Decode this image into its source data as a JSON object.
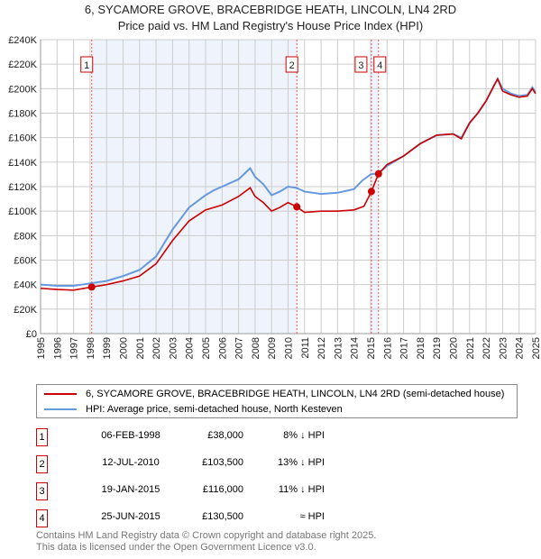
{
  "header": {
    "title": "6, SYCAMORE GROVE, BRACEBRIDGE HEATH, LINCOLN, LN4 2RD",
    "subtitle": "Price paid vs. HM Land Registry's House Price Index (HPI)"
  },
  "chart_data": {
    "type": "line",
    "title": "6, SYCAMORE GROVE, BRACEBRIDGE HEATH, LINCOLN, LN4 2RD",
    "subtitle": "Price paid vs. HM Land Registry's House Price Index (HPI)",
    "xlim": [
      1995,
      2025
    ],
    "ylim": [
      0,
      240000
    ],
    "x_ticks": [
      "1995",
      "1996",
      "1997",
      "1998",
      "1999",
      "2000",
      "2001",
      "2002",
      "2003",
      "2004",
      "2005",
      "2006",
      "2007",
      "2008",
      "2009",
      "2010",
      "2011",
      "2012",
      "2013",
      "2014",
      "2015",
      "2016",
      "2017",
      "2018",
      "2019",
      "2020",
      "2021",
      "2022",
      "2023",
      "2024",
      "2025"
    ],
    "y_ticks": [
      "£0",
      "£20K",
      "£40K",
      "£60K",
      "£80K",
      "£100K",
      "£120K",
      "£140K",
      "£160K",
      "£180K",
      "£200K",
      "£220K",
      "£240K"
    ],
    "grid": true,
    "series": [
      {
        "name": "6, SYCAMORE GROVE, BRACEBRIDGE HEATH, LINCOLN, LN4 2RD (semi-detached house)",
        "color": "#cc0000",
        "x": [
          1995,
          1996,
          1997,
          1998.1,
          1999,
          2000,
          2001,
          2002,
          2003,
          2004,
          2005,
          2006,
          2007,
          2007.7,
          2008,
          2008.5,
          2009,
          2009.5,
          2010,
          2010.53,
          2011,
          2012,
          2013,
          2014,
          2014.6,
          2015.05,
          2015.48,
          2016,
          2017,
          2018,
          2019,
          2020,
          2020.5,
          2021,
          2021.5,
          2022,
          2022.5,
          2022.7,
          2023,
          2023.5,
          2024,
          2024.5,
          2024.8,
          2025
        ],
        "y": [
          37000,
          36000,
          35500,
          38000,
          40000,
          43000,
          47000,
          57000,
          76000,
          92000,
          101000,
          105000,
          112000,
          119000,
          112000,
          107000,
          100000,
          103000,
          107000,
          103500,
          99000,
          100000,
          100000,
          101000,
          104000,
          116000,
          130500,
          138000,
          145000,
          155000,
          162000,
          163000,
          159000,
          172000,
          180000,
          190000,
          203000,
          208000,
          198000,
          195000,
          193000,
          194000,
          200000,
          196000
        ]
      },
      {
        "name": "HPI: Average price, semi-detached house, North Kesteven",
        "color": "#6699dd",
        "x": [
          1995,
          1996,
          1997,
          1998,
          1999,
          2000,
          2001,
          2002,
          2003,
          2004,
          2005,
          2005.5,
          2006,
          2007,
          2007.7,
          2008,
          2008.5,
          2009,
          2009.5,
          2010,
          2010.5,
          2011,
          2012,
          2013,
          2014,
          2014.5,
          2015,
          2015.5,
          2016,
          2017,
          2018,
          2019,
          2020,
          2020.5,
          2021,
          2021.5,
          2022,
          2022.5,
          2022.7,
          2023,
          2023.5,
          2024,
          2024.5,
          2024.8,
          2025
        ],
        "y": [
          40000,
          39000,
          39000,
          41000,
          43000,
          47000,
          52000,
          63000,
          85000,
          103000,
          113000,
          117000,
          120000,
          126000,
          135000,
          128000,
          122000,
          113000,
          116000,
          120000,
          119000,
          116000,
          114000,
          115000,
          118000,
          125000,
          130000,
          131000,
          137000,
          145000,
          155000,
          162000,
          163000,
          160000,
          172000,
          180000,
          190000,
          203000,
          208000,
          200000,
          196000,
          194000,
          195000,
          201000,
          197000
        ]
      }
    ],
    "sales": [
      {
        "label": "1",
        "x": 1998.1,
        "date": "06-FEB-1998",
        "price": 38000,
        "price_text": "£38,000",
        "relation": "8% ↓ HPI"
      },
      {
        "label": "2",
        "x": 2010.53,
        "date": "12-JUL-2010",
        "price": 103500,
        "price_text": "£103,500",
        "relation": "13% ↓ HPI"
      },
      {
        "label": "3",
        "x": 2015.05,
        "date": "19-JAN-2015",
        "price": 116000,
        "price_text": "£116,000",
        "relation": "11% ↓ HPI"
      },
      {
        "label": "4",
        "x": 2015.48,
        "date": "25-JUN-2015",
        "price": 130500,
        "price_text": "£130,500",
        "relation": "≈ HPI"
      }
    ]
  },
  "legend": {
    "property": "6, SYCAMORE GROVE, BRACEBRIDGE HEATH, LINCOLN, LN4 2RD (semi-detached house)",
    "hpi": "HPI: Average price, semi-detached house, North Kesteven"
  },
  "footer": {
    "line1": "Contains HM Land Registry data © Crown copyright and database right 2025.",
    "line2": "This data is licensed under the Open Government Licence v3.0."
  }
}
